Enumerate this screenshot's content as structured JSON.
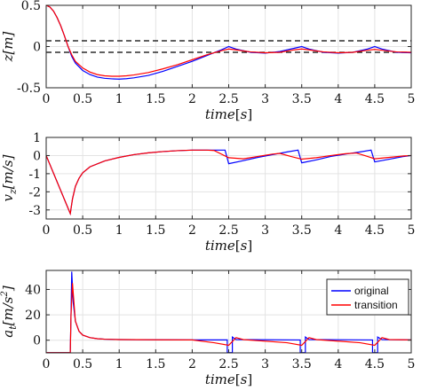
{
  "chart_data": [
    {
      "type": "line",
      "xlabel": "time[s]",
      "ylabel": "z[m]",
      "xlim": [
        0,
        5
      ],
      "ylim": [
        -0.5,
        0.5
      ],
      "xticks": [
        "0",
        "0.5",
        "1",
        "1.5",
        "2",
        "2.5",
        "3",
        "3.5",
        "4",
        "4.5",
        "5"
      ],
      "yticks": [
        {
          "v": 0.5,
          "label": "0.5"
        },
        {
          "v": 0,
          "label": "0"
        },
        {
          "v": -0.5,
          "label": "-0.5"
        }
      ],
      "grid": true,
      "reference_lines": [
        0.07,
        -0.07
      ],
      "series": [
        {
          "color": "#0000ff",
          "x": [
            0,
            0.05,
            0.1,
            0.15,
            0.2,
            0.25,
            0.3,
            0.35,
            0.4,
            0.5,
            0.6,
            0.7,
            0.8,
            0.9,
            1.0,
            1.1,
            1.2,
            1.4,
            1.6,
            1.8,
            2.0,
            2.2,
            2.4,
            2.5,
            2.6,
            2.8,
            3.0,
            3.2,
            3.4,
            3.5,
            3.6,
            3.8,
            4.0,
            4.2,
            4.4,
            4.5,
            4.6,
            4.8,
            5.0
          ],
          "y": [
            0.5,
            0.48,
            0.43,
            0.35,
            0.25,
            0.13,
            0.0,
            -0.12,
            -0.2,
            -0.29,
            -0.34,
            -0.37,
            -0.385,
            -0.392,
            -0.395,
            -0.39,
            -0.38,
            -0.35,
            -0.3,
            -0.24,
            -0.18,
            -0.11,
            -0.04,
            0.0,
            -0.03,
            -0.07,
            -0.08,
            -0.06,
            -0.02,
            0.0,
            -0.03,
            -0.07,
            -0.08,
            -0.07,
            -0.03,
            0.0,
            -0.03,
            -0.07,
            -0.075
          ]
        },
        {
          "color": "#ff0000",
          "x": [
            0,
            0.05,
            0.1,
            0.15,
            0.2,
            0.25,
            0.3,
            0.35,
            0.4,
            0.5,
            0.6,
            0.7,
            0.8,
            0.9,
            1.0,
            1.1,
            1.2,
            1.4,
            1.6,
            1.8,
            2.0,
            2.2,
            2.4,
            2.5,
            2.6,
            2.8,
            3.0,
            3.2,
            3.4,
            3.5,
            3.6,
            3.8,
            4.0,
            4.2,
            4.4,
            4.5,
            4.6,
            4.8,
            5.0
          ],
          "y": [
            0.5,
            0.48,
            0.43,
            0.35,
            0.25,
            0.13,
            0.0,
            -0.1,
            -0.18,
            -0.26,
            -0.31,
            -0.34,
            -0.355,
            -0.36,
            -0.36,
            -0.355,
            -0.345,
            -0.315,
            -0.27,
            -0.22,
            -0.16,
            -0.1,
            -0.05,
            -0.03,
            -0.04,
            -0.065,
            -0.075,
            -0.07,
            -0.04,
            -0.03,
            -0.04,
            -0.065,
            -0.075,
            -0.07,
            -0.045,
            -0.035,
            -0.045,
            -0.065,
            -0.07
          ]
        }
      ]
    },
    {
      "type": "line",
      "xlabel": "time[s]",
      "ylabel": "v_z[m/s]",
      "xlim": [
        0,
        5
      ],
      "ylim": [
        -3.5,
        1
      ],
      "xticks": [
        "0",
        "0.5",
        "1",
        "1.5",
        "2",
        "2.5",
        "3",
        "3.5",
        "4",
        "4.5",
        "5"
      ],
      "yticks": [
        {
          "v": 1,
          "label": "1"
        },
        {
          "v": 0,
          "label": "0"
        },
        {
          "v": -1,
          "label": "-1"
        },
        {
          "v": -2,
          "label": "-2"
        },
        {
          "v": -3,
          "label": "-3"
        }
      ],
      "grid": true,
      "series": [
        {
          "color": "#0000ff",
          "x": [
            0,
            0.33,
            0.36,
            0.4,
            0.45,
            0.5,
            0.6,
            0.8,
            1.0,
            1.2,
            1.4,
            1.6,
            1.8,
            2.0,
            2.2,
            2.45,
            2.5,
            2.7,
            2.9,
            3.1,
            3.3,
            3.45,
            3.5,
            3.7,
            3.9,
            4.1,
            4.3,
            4.45,
            4.5,
            4.7,
            4.9,
            5.0
          ],
          "y": [
            0,
            -3.2,
            -2.4,
            -1.7,
            -1.25,
            -0.95,
            -0.62,
            -0.3,
            -0.1,
            0.05,
            0.15,
            0.22,
            0.27,
            0.3,
            0.3,
            0.3,
            -0.45,
            -0.28,
            -0.1,
            0.05,
            0.2,
            0.3,
            -0.4,
            -0.24,
            -0.05,
            0.08,
            0.2,
            0.3,
            -0.35,
            -0.2,
            -0.05,
            0.0
          ]
        },
        {
          "color": "#ff0000",
          "x": [
            0,
            0.33,
            0.36,
            0.4,
            0.45,
            0.5,
            0.6,
            0.8,
            1.0,
            1.2,
            1.4,
            1.6,
            1.8,
            2.0,
            2.2,
            2.3,
            2.5,
            2.7,
            2.9,
            3.1,
            3.2,
            3.35,
            3.5,
            3.7,
            3.9,
            4.1,
            4.25,
            4.4,
            4.5,
            4.7,
            4.9,
            5.0
          ],
          "y": [
            0,
            -3.2,
            -2.4,
            -1.7,
            -1.25,
            -0.95,
            -0.62,
            -0.3,
            -0.1,
            0.05,
            0.15,
            0.22,
            0.27,
            0.3,
            0.3,
            0.28,
            -0.12,
            -0.18,
            -0.05,
            0.08,
            0.12,
            -0.05,
            -0.2,
            -0.12,
            0.0,
            0.1,
            0.14,
            -0.05,
            -0.18,
            -0.1,
            -0.02,
            0.0
          ]
        }
      ]
    },
    {
      "type": "line",
      "xlabel": "time[s]",
      "ylabel": "a_t[m/s^2]",
      "xlim": [
        0,
        5
      ],
      "ylim": [
        -10,
        55
      ],
      "xticks": [
        "0",
        "0.5",
        "1",
        "1.5",
        "2",
        "2.5",
        "3",
        "3.5",
        "4",
        "4.5",
        "5"
      ],
      "yticks": [
        {
          "v": 40,
          "label": "40"
        },
        {
          "v": 20,
          "label": "20"
        },
        {
          "v": 0,
          "label": "0"
        }
      ],
      "grid": true,
      "legend": {
        "position": "top-right",
        "entries": [
          "original",
          "transition"
        ]
      },
      "series": [
        {
          "name": "original",
          "color": "#0000ff",
          "x": [
            0,
            0.33,
            0.34,
            0.35,
            0.37,
            0.4,
            0.45,
            0.5,
            0.6,
            0.7,
            0.8,
            1.0,
            1.5,
            2.0,
            2.48,
            2.48,
            2.55,
            2.55,
            2.6,
            3.48,
            3.48,
            3.55,
            3.55,
            3.6,
            4.47,
            4.47,
            4.54,
            4.54,
            4.6,
            5.0
          ],
          "y": [
            -9.8,
            -9.8,
            20,
            54,
            30,
            15,
            7,
            4,
            2,
            1.2,
            0.8,
            0.5,
            0.3,
            0.2,
            0.2,
            -9.8,
            -9.8,
            2.5,
            0.5,
            0.2,
            -9.8,
            -9.8,
            2.5,
            0.5,
            0.2,
            -9.8,
            -9.8,
            2.5,
            0.5,
            0.2
          ]
        },
        {
          "name": "transition",
          "color": "#ff0000",
          "x": [
            0,
            0.33,
            0.34,
            0.36,
            0.38,
            0.4,
            0.45,
            0.5,
            0.6,
            0.7,
            0.8,
            1.0,
            1.5,
            2.0,
            2.3,
            2.5,
            2.6,
            2.7,
            3.3,
            3.5,
            3.6,
            3.7,
            4.3,
            4.5,
            4.6,
            4.7,
            5.0
          ],
          "y": [
            -9.8,
            -9.8,
            20,
            45,
            30,
            15,
            7,
            4,
            2,
            1.2,
            0.8,
            0.5,
            0.3,
            0.2,
            -2,
            -4,
            2,
            0.5,
            -2,
            -4,
            2,
            0.5,
            -2,
            -4,
            2,
            0.5,
            0.2
          ]
        }
      ]
    }
  ]
}
